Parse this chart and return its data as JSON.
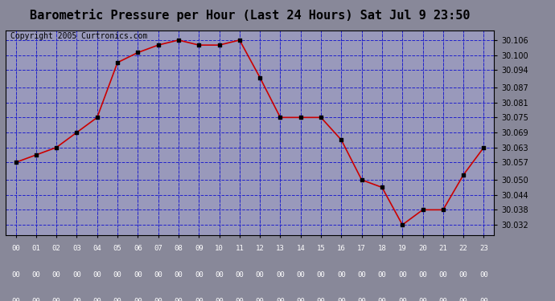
{
  "title": "Barometric Pressure per Hour (Last 24 Hours) Sat Jul 9 23:50",
  "copyright": "Copyright 2005 Curtronics.com",
  "hours": [
    "00:00",
    "01:00",
    "02:00",
    "03:00",
    "04:00",
    "05:00",
    "06:00",
    "07:00",
    "08:00",
    "09:00",
    "10:00",
    "11:00",
    "12:00",
    "13:00",
    "14:00",
    "15:00",
    "16:00",
    "17:00",
    "18:00",
    "19:00",
    "20:00",
    "21:00",
    "22:00",
    "23:00"
  ],
  "values": [
    30.057,
    30.06,
    30.063,
    30.069,
    30.075,
    30.097,
    30.101,
    30.104,
    30.106,
    30.104,
    30.104,
    30.106,
    30.091,
    30.075,
    30.075,
    30.075,
    30.066,
    30.05,
    30.047,
    30.032,
    30.038,
    30.038,
    30.052,
    30.063
  ],
  "line_color": "#cc0000",
  "marker_color": "#000000",
  "bg_color": "#888899",
  "plot_bg_color": "#9999bb",
  "grid_color": "#2222cc",
  "title_fontsize": 11,
  "copyright_fontsize": 7,
  "ylim_min": 30.028,
  "ylim_max": 30.11,
  "yticks": [
    30.032,
    30.038,
    30.044,
    30.05,
    30.057,
    30.063,
    30.069,
    30.075,
    30.081,
    30.087,
    30.094,
    30.1,
    30.106
  ],
  "xtick_bg": "#222222",
  "xtick_color": "#ffffff"
}
